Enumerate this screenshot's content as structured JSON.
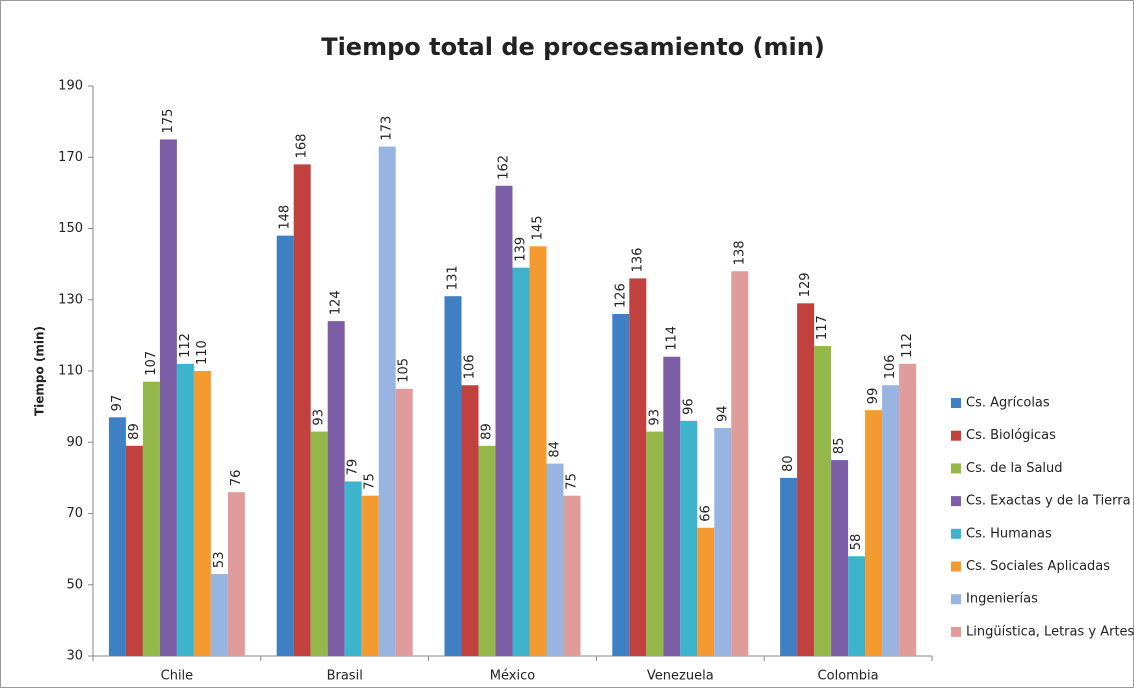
{
  "chart_data": {
    "type": "bar",
    "title": "Tiempo total de procesamiento (min)",
    "ylabel": "Tiempo (min)",
    "categories": [
      "Chile",
      "Brasil",
      "México",
      "Venezuela",
      "Colombia"
    ],
    "series": [
      {
        "name": "Cs. Agrícolas",
        "color": "#3f7fc4",
        "values": [
          97,
          148,
          131,
          126,
          80
        ]
      },
      {
        "name": "Cs. Biológicas",
        "color": "#c0413d",
        "values": [
          89,
          168,
          106,
          136,
          129
        ]
      },
      {
        "name": "Cs. de la Salud",
        "color": "#94b94a",
        "values": [
          107,
          93,
          89,
          93,
          117
        ]
      },
      {
        "name": "Cs. Exactas y de la Tierra",
        "color": "#7b5ea6",
        "values": [
          175,
          124,
          162,
          114,
          85
        ]
      },
      {
        "name": "Cs. Humanas",
        "color": "#3eb4cc",
        "values": [
          112,
          79,
          139,
          96,
          58
        ]
      },
      {
        "name": "Cs. Sociales Aplicadas",
        "color": "#f39a31",
        "values": [
          110,
          75,
          145,
          66,
          99
        ]
      },
      {
        "name": "Ingenierías",
        "color": "#98b4e0",
        "values": [
          53,
          173,
          84,
          94,
          106
        ]
      },
      {
        "name": "Lingüística, Letras y Artes",
        "color": "#e09c9a",
        "values": [
          76,
          105,
          75,
          138,
          112
        ]
      }
    ],
    "ylim": [
      30,
      190
    ],
    "yticks": [
      30,
      50,
      70,
      90,
      110,
      130,
      150,
      170,
      190
    ],
    "legend": "right"
  }
}
